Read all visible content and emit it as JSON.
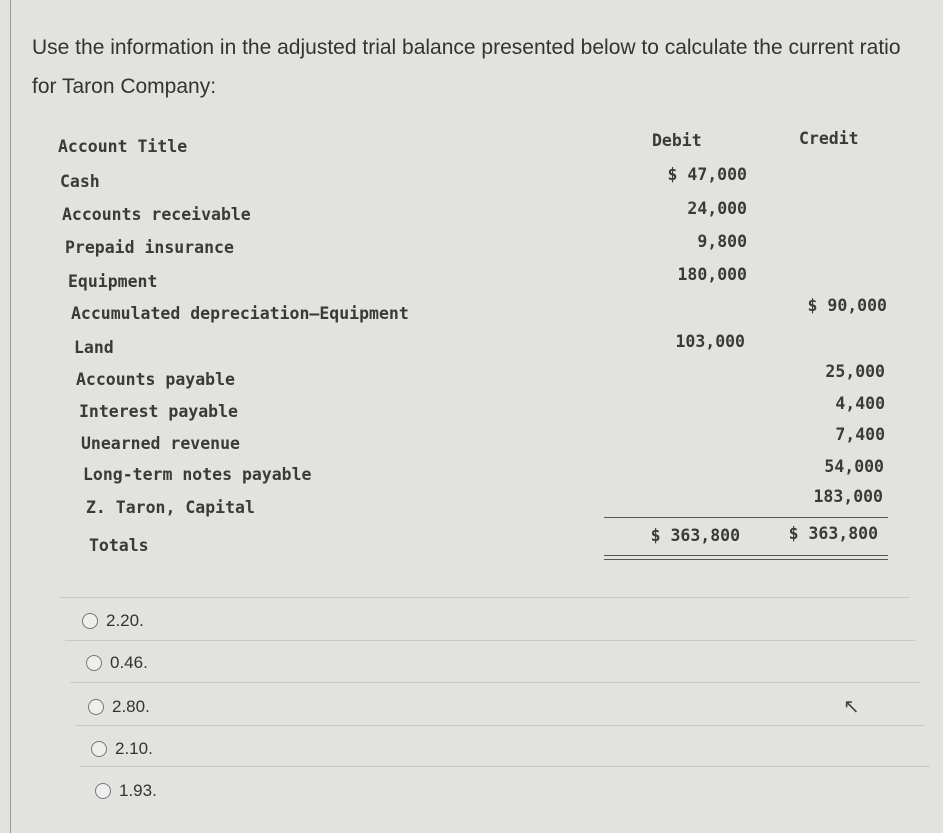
{
  "question": "Use the information in the adjusted trial balance presented below to calculate the current ratio for Taron Company:",
  "table": {
    "headers": {
      "account": "Account Title",
      "debit": "Debit",
      "credit": "Credit"
    },
    "rows": [
      {
        "account": "Cash",
        "debit": "$ 47,000",
        "credit": ""
      },
      {
        "account": "Accounts receivable",
        "debit": "24,000",
        "credit": ""
      },
      {
        "account": "Prepaid insurance",
        "debit": "9,800",
        "credit": ""
      },
      {
        "account": "Equipment",
        "debit": "180,000",
        "credit": ""
      },
      {
        "account": "Accumulated depreciation—Equipment",
        "debit": "",
        "credit": "$ 90,000"
      },
      {
        "account": "Land",
        "debit": "103,000",
        "credit": ""
      },
      {
        "account": "Accounts payable",
        "debit": "",
        "credit": "25,000"
      },
      {
        "account": "Interest payable",
        "debit": "",
        "credit": "4,400"
      },
      {
        "account": "Unearned revenue",
        "debit": "",
        "credit": "7,400"
      },
      {
        "account": "Long-term notes payable",
        "debit": "",
        "credit": "54,000"
      },
      {
        "account": "Z. Taron, Capital",
        "debit": "",
        "credit": "183,000"
      }
    ],
    "totals": {
      "label": "Totals",
      "debit": "$ 363,800",
      "credit": "$ 363,800"
    }
  },
  "options": [
    "2.20.",
    "0.46.",
    "2.80.",
    "2.10.",
    "1.93."
  ],
  "selected_option": null
}
